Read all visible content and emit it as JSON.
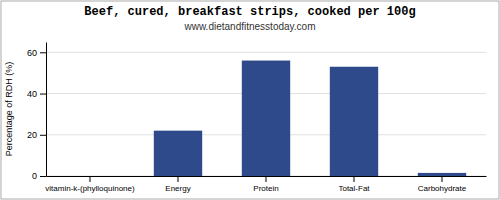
{
  "chart_data": {
    "type": "bar",
    "title": "Beef, cured, breakfast strips, cooked per 100g",
    "subtitle": "www.dietandfitnesstoday.com",
    "categories": [
      "vitamin-k-(phylloquinone)",
      "Energy",
      "Protein",
      "Total-Fat",
      "Carbohydrate"
    ],
    "values": [
      0,
      22,
      56,
      53,
      1.5
    ],
    "color": "#2e4a8a",
    "ylabel": "Percentage of RDH (%)",
    "ylim": [
      0,
      65
    ],
    "yticks": [
      0,
      20,
      40,
      60
    ],
    "grid": true
  }
}
